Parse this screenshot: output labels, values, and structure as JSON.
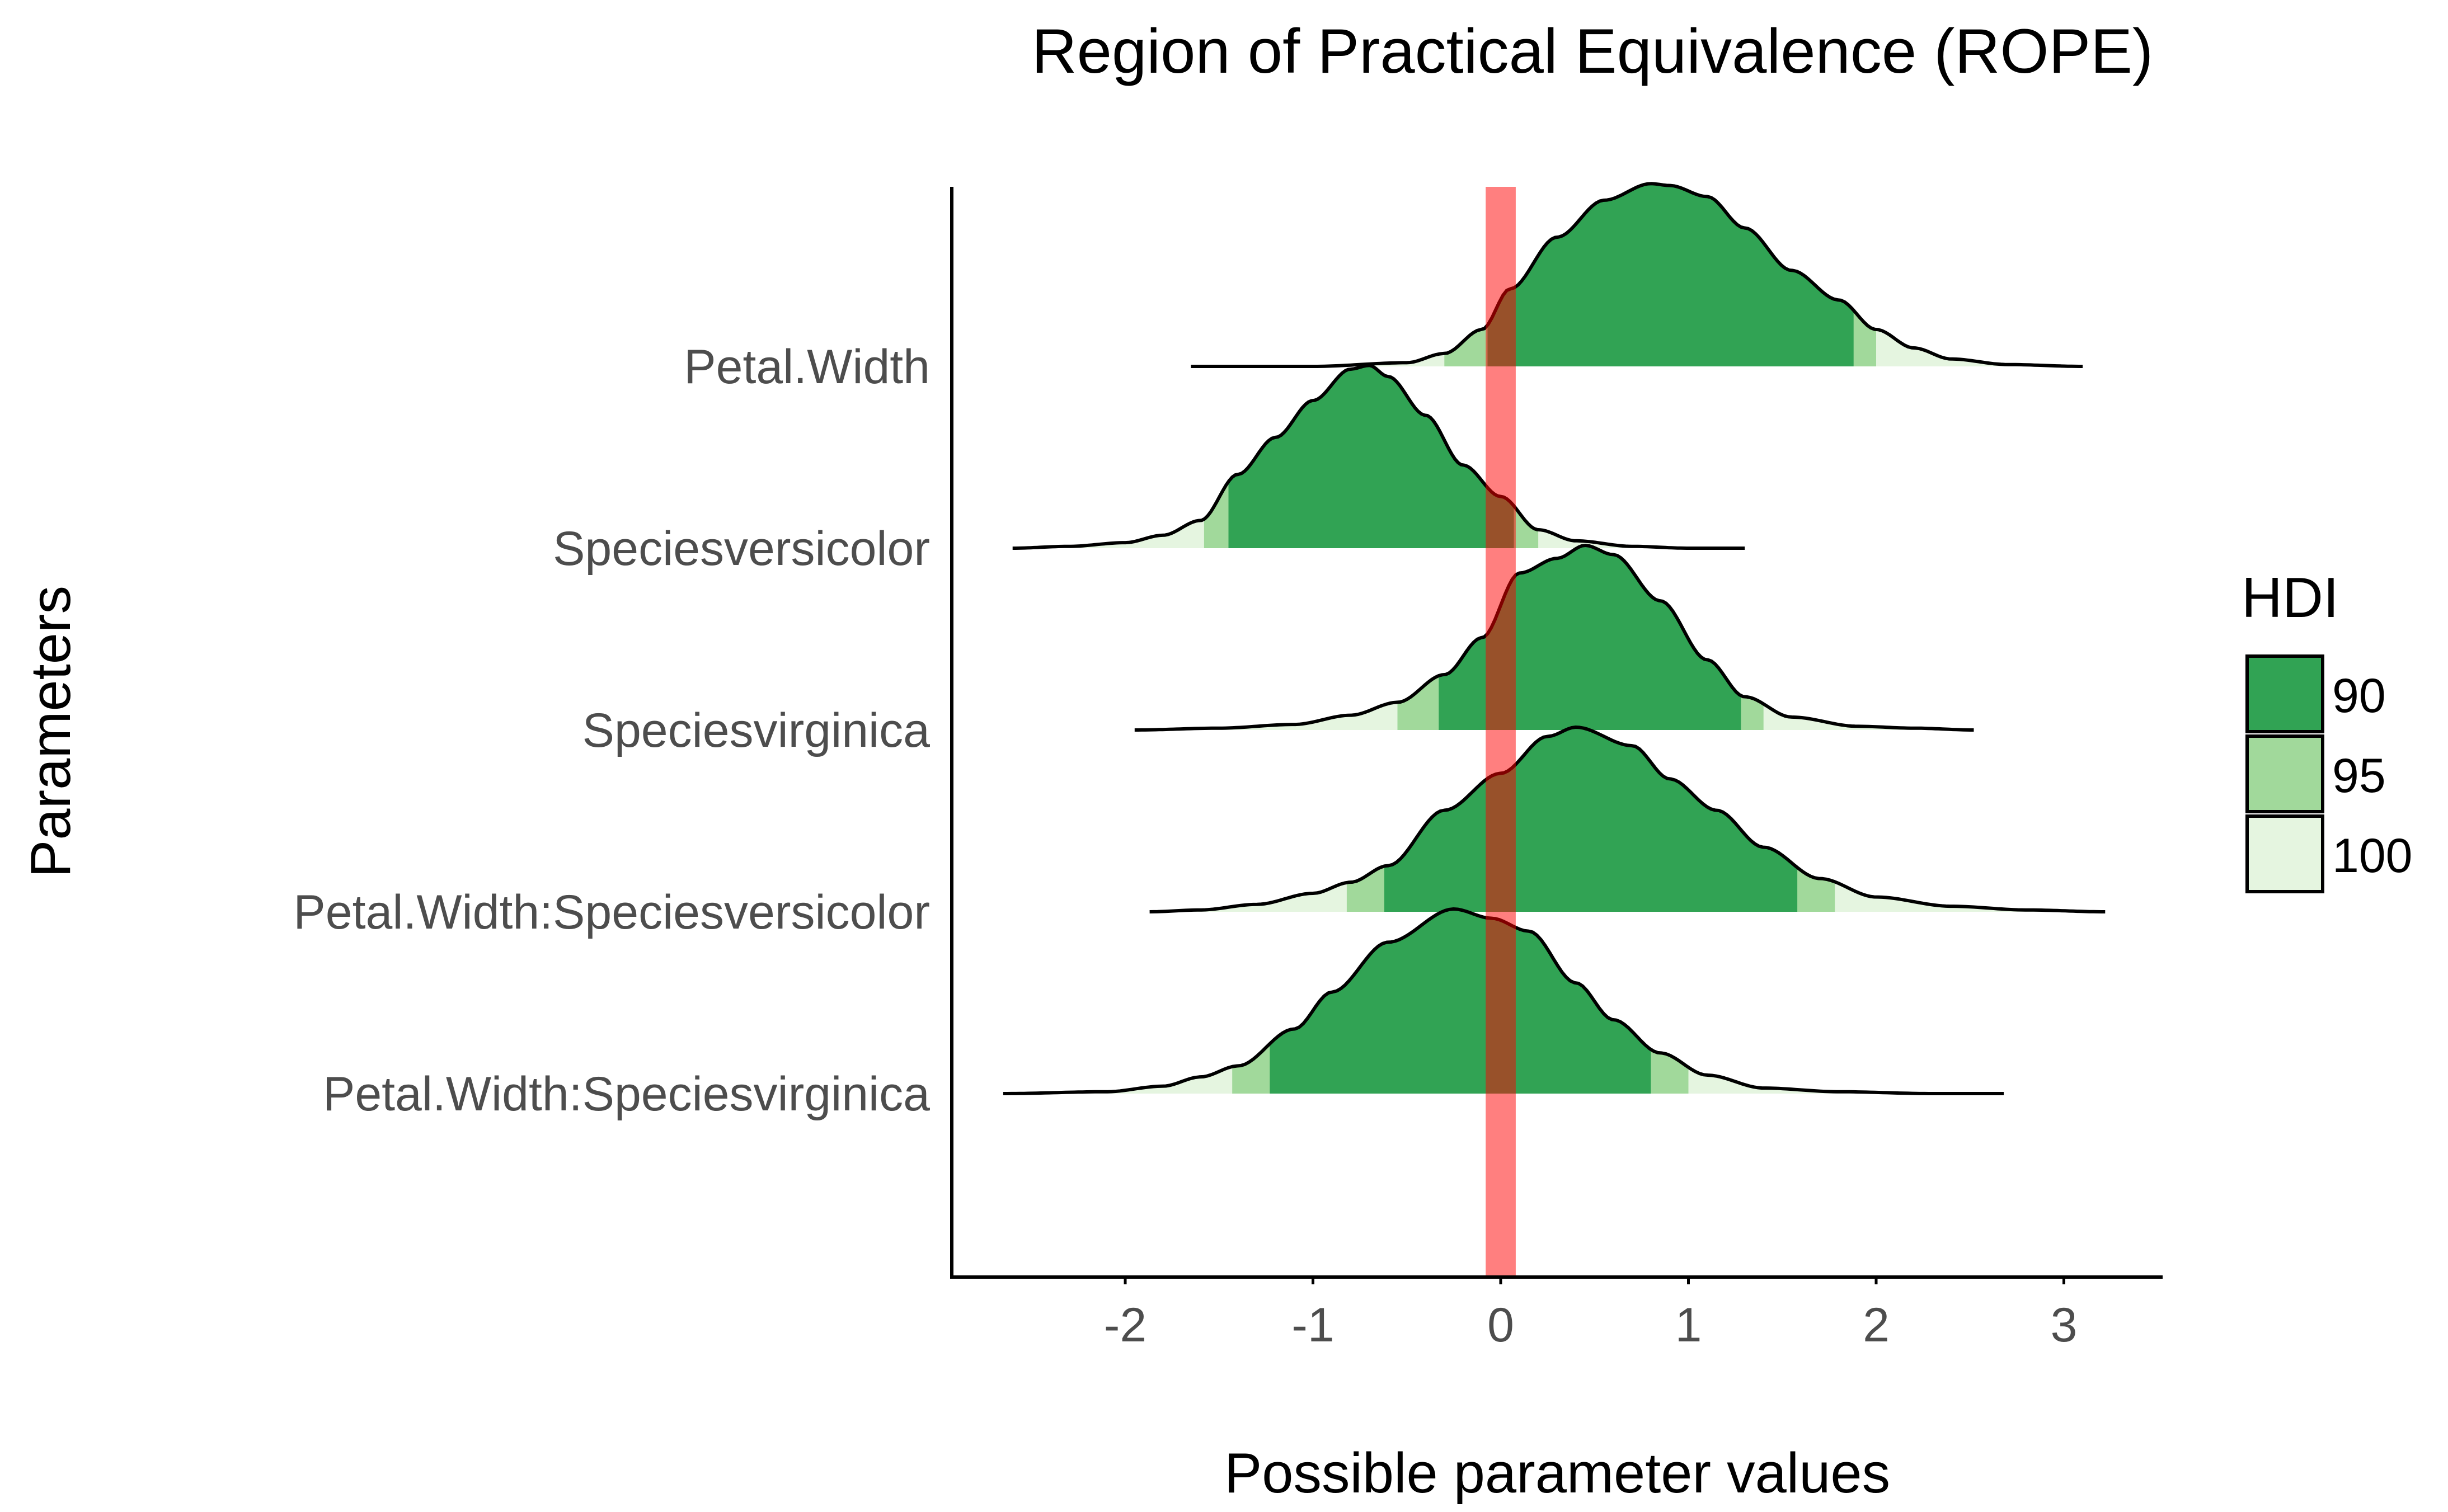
{
  "chart_data": {
    "type": "area",
    "title": "Region of Practical Equivalence (ROPE)",
    "xlabel": "Possible parameter values",
    "ylabel": "Parameters",
    "xlim": [
      -2.85,
      3.55
    ],
    "x_ticks": [
      -2,
      -1,
      0,
      1,
      2,
      3
    ],
    "x_tick_labels": [
      "-2",
      "-1",
      "0",
      "1",
      "2",
      "3"
    ],
    "grid": false,
    "legend_position": "right",
    "legend": {
      "title": "HDI",
      "entries": [
        {
          "label": "90",
          "color": "#31a354"
        },
        {
          "label": "95",
          "color": "#a1d99b"
        },
        {
          "label": "100",
          "color": "#e5f5e0"
        }
      ]
    },
    "rope": {
      "range": [
        -0.08,
        0.08
      ],
      "color": "#ff0000",
      "opacity": 0.5
    },
    "colors": {
      "hdi90": "#31a354",
      "hdi95": "#a1d99b",
      "hdi100": "#e5f5e0",
      "outline": "#000000",
      "rope": "#ff0000"
    },
    "series": [
      {
        "name": "Petal.Width",
        "hdi": {
          "90": [
            -0.07,
            1.88
          ],
          "95": [
            -0.3,
            2.0
          ],
          "100": [
            -1.65,
            3.1
          ]
        },
        "points": [
          [
            -1.65,
            0.0
          ],
          [
            -1.0,
            0.0
          ],
          [
            -0.5,
            0.02
          ],
          [
            -0.3,
            0.07
          ],
          [
            -0.1,
            0.2
          ],
          [
            0.05,
            0.42
          ],
          [
            0.3,
            0.7
          ],
          [
            0.55,
            0.9
          ],
          [
            0.8,
            0.99
          ],
          [
            0.9,
            0.98
          ],
          [
            1.1,
            0.92
          ],
          [
            1.3,
            0.75
          ],
          [
            1.55,
            0.52
          ],
          [
            1.8,
            0.36
          ],
          [
            2.0,
            0.2
          ],
          [
            2.2,
            0.1
          ],
          [
            2.4,
            0.04
          ],
          [
            2.7,
            0.01
          ],
          [
            3.1,
            0.0
          ]
        ]
      },
      {
        "name": "Speciesversicolor",
        "hdi": {
          "90": [
            -1.45,
            0.07
          ],
          "95": [
            -1.58,
            0.2
          ],
          "100": [
            -2.6,
            1.3
          ]
        },
        "points": [
          [
            -2.6,
            0.0
          ],
          [
            -2.3,
            0.01
          ],
          [
            -2.0,
            0.03
          ],
          [
            -1.8,
            0.07
          ],
          [
            -1.6,
            0.15
          ],
          [
            -1.4,
            0.4
          ],
          [
            -1.2,
            0.6
          ],
          [
            -1.0,
            0.8
          ],
          [
            -0.8,
            0.97
          ],
          [
            -0.7,
            0.99
          ],
          [
            -0.6,
            0.93
          ],
          [
            -0.4,
            0.72
          ],
          [
            -0.2,
            0.45
          ],
          [
            0.0,
            0.28
          ],
          [
            0.2,
            0.1
          ],
          [
            0.4,
            0.04
          ],
          [
            0.7,
            0.01
          ],
          [
            1.0,
            0.0
          ],
          [
            1.3,
            0.0
          ]
        ]
      },
      {
        "name": "Speciesvirginica",
        "hdi": {
          "90": [
            -0.33,
            1.28
          ],
          "95": [
            -0.55,
            1.4
          ],
          "100": [
            -1.95,
            2.52
          ]
        },
        "points": [
          [
            -1.95,
            0.0
          ],
          [
            -1.5,
            0.01
          ],
          [
            -1.1,
            0.03
          ],
          [
            -0.8,
            0.08
          ],
          [
            -0.55,
            0.15
          ],
          [
            -0.3,
            0.3
          ],
          [
            -0.1,
            0.5
          ],
          [
            0.1,
            0.85
          ],
          [
            0.3,
            0.93
          ],
          [
            0.45,
            1.0
          ],
          [
            0.6,
            0.95
          ],
          [
            0.85,
            0.7
          ],
          [
            1.1,
            0.38
          ],
          [
            1.3,
            0.18
          ],
          [
            1.55,
            0.07
          ],
          [
            1.9,
            0.02
          ],
          [
            2.2,
            0.01
          ],
          [
            2.52,
            0.0
          ]
        ]
      },
      {
        "name": "Petal.Width:Speciesversicolor",
        "hdi": {
          "90": [
            -0.62,
            1.58
          ],
          "95": [
            -0.82,
            1.78
          ],
          "100": [
            -1.87,
            3.22
          ]
        },
        "points": [
          [
            -1.87,
            0.0
          ],
          [
            -1.6,
            0.01
          ],
          [
            -1.3,
            0.04
          ],
          [
            -1.0,
            0.1
          ],
          [
            -0.8,
            0.16
          ],
          [
            -0.6,
            0.25
          ],
          [
            -0.3,
            0.55
          ],
          [
            0.0,
            0.75
          ],
          [
            0.25,
            0.95
          ],
          [
            0.4,
            1.0
          ],
          [
            0.7,
            0.9
          ],
          [
            0.9,
            0.72
          ],
          [
            1.15,
            0.55
          ],
          [
            1.4,
            0.35
          ],
          [
            1.7,
            0.18
          ],
          [
            2.0,
            0.08
          ],
          [
            2.4,
            0.03
          ],
          [
            2.8,
            0.01
          ],
          [
            3.22,
            0.0
          ]
        ]
      },
      {
        "name": "Petal.Width:Speciesvirginica",
        "hdi": {
          "90": [
            -1.23,
            0.8
          ],
          "95": [
            -1.43,
            1.0
          ],
          "100": [
            -2.65,
            2.68
          ]
        },
        "points": [
          [
            -2.65,
            0.0
          ],
          [
            -2.1,
            0.01
          ],
          [
            -1.8,
            0.04
          ],
          [
            -1.6,
            0.09
          ],
          [
            -1.4,
            0.15
          ],
          [
            -1.1,
            0.35
          ],
          [
            -0.9,
            0.55
          ],
          [
            -0.6,
            0.82
          ],
          [
            -0.25,
            1.0
          ],
          [
            -0.05,
            0.95
          ],
          [
            0.15,
            0.88
          ],
          [
            0.4,
            0.6
          ],
          [
            0.6,
            0.4
          ],
          [
            0.85,
            0.22
          ],
          [
            1.1,
            0.1
          ],
          [
            1.4,
            0.03
          ],
          [
            1.8,
            0.01
          ],
          [
            2.3,
            0.0
          ],
          [
            2.68,
            0.0
          ]
        ]
      }
    ]
  }
}
